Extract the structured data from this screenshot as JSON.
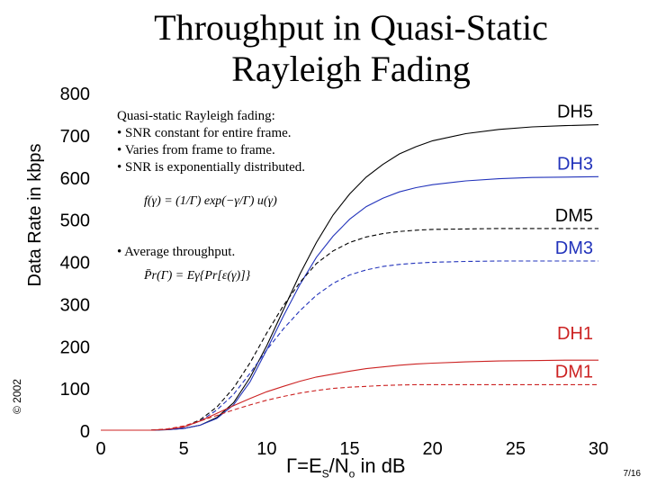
{
  "slide": {
    "title_line1": "Throughput in Quasi-Static",
    "title_line2": "Rayleigh Fading",
    "copyright": "© 2002",
    "page": "7/16"
  },
  "annotation": {
    "heading": "Quasi-static Rayleigh fading:",
    "bullets": [
      "• SNR constant for entire frame.",
      "• Varies from frame to frame.",
      "• SNR is exponentially distributed."
    ],
    "pdf_formula": "f(γ) = (1/Γ) exp(−γ/Γ) u(γ)",
    "bullet2": "• Average throughput.",
    "avg_formula": "P̄r(Γ) = Eγ{Pr[ε(γ)]}"
  },
  "colors": {
    "black": "#000000",
    "blue": "#2233bb",
    "red": "#cc2222"
  },
  "chart_data": {
    "type": "line",
    "title": "Throughput in Quasi-Static Rayleigh Fading",
    "xlabel": "Γ=ES/No in dB",
    "ylabel": "Data Rate in kbps",
    "xlim": [
      0,
      30
    ],
    "ylim": [
      0,
      800
    ],
    "xticks": [
      0,
      5,
      10,
      15,
      20,
      25,
      30
    ],
    "yticks": [
      0,
      100,
      200,
      300,
      400,
      500,
      600,
      700,
      800
    ],
    "grid": false,
    "series": [
      {
        "name": "DH5",
        "color": "#000000",
        "dash": false,
        "x": [
          0,
          3,
          4,
          5,
          6,
          7,
          8,
          9,
          10,
          11,
          12,
          13,
          14,
          15,
          16,
          17,
          18,
          19,
          20,
          22,
          24,
          26,
          28,
          30
        ],
        "y": [
          0,
          0,
          1,
          4,
          12,
          30,
          65,
          125,
          200,
          285,
          370,
          445,
          510,
          560,
          600,
          630,
          655,
          672,
          686,
          703,
          713,
          719,
          722,
          724
        ]
      },
      {
        "name": "DH3",
        "color": "#2233bb",
        "dash": false,
        "x": [
          0,
          3,
          4,
          5,
          6,
          7,
          8,
          9,
          10,
          11,
          12,
          13,
          14,
          15,
          16,
          17,
          18,
          19,
          20,
          22,
          24,
          26,
          28,
          30
        ],
        "y": [
          0,
          0,
          1,
          4,
          12,
          28,
          60,
          115,
          190,
          270,
          345,
          410,
          460,
          500,
          530,
          550,
          565,
          575,
          582,
          591,
          596,
          599,
          600,
          601
        ]
      },
      {
        "name": "DM5",
        "color": "#000000",
        "dash": true,
        "x": [
          0,
          3,
          4,
          5,
          6,
          7,
          8,
          9,
          10,
          11,
          12,
          13,
          14,
          15,
          16,
          17,
          18,
          19,
          20,
          22,
          24,
          26,
          28,
          30
        ],
        "y": [
          0,
          0,
          2,
          8,
          25,
          55,
          100,
          160,
          230,
          295,
          350,
          395,
          425,
          445,
          458,
          466,
          471,
          474,
          476,
          477,
          478,
          478,
          478,
          478
        ]
      },
      {
        "name": "DM3",
        "color": "#2233bb",
        "dash": true,
        "x": [
          0,
          3,
          4,
          5,
          6,
          7,
          8,
          9,
          10,
          11,
          12,
          13,
          14,
          15,
          16,
          17,
          18,
          19,
          20,
          22,
          24,
          26,
          28,
          30
        ],
        "y": [
          0,
          0,
          2,
          7,
          22,
          48,
          85,
          135,
          190,
          240,
          283,
          320,
          348,
          368,
          380,
          388,
          393,
          396,
          398,
          400,
          401,
          401,
          401,
          401
        ]
      },
      {
        "name": "DH1",
        "color": "#cc2222",
        "dash": false,
        "x": [
          0,
          3,
          4,
          5,
          6,
          7,
          8,
          9,
          10,
          11,
          12,
          13,
          14,
          15,
          16,
          17,
          18,
          19,
          20,
          22,
          24,
          26,
          28,
          30
        ],
        "y": [
          0,
          0,
          2,
          8,
          22,
          40,
          58,
          75,
          91,
          104,
          116,
          126,
          133,
          140,
          146,
          150,
          154,
          157,
          159,
          162,
          164,
          165,
          166,
          166
        ]
      },
      {
        "name": "DM1",
        "color": "#cc2222",
        "dash": true,
        "x": [
          0,
          3,
          4,
          5,
          6,
          7,
          8,
          9,
          10,
          11,
          12,
          13,
          14,
          15,
          16,
          17,
          18,
          19,
          20,
          22,
          24,
          26,
          28,
          30
        ],
        "y": [
          0,
          0,
          3,
          10,
          22,
          35,
          48,
          60,
          71,
          80,
          88,
          94,
          99,
          102,
          104,
          106,
          107,
          108,
          108,
          108,
          108,
          108,
          108,
          108
        ]
      }
    ],
    "legend_labels": [
      {
        "name": "DH5",
        "color": "#000000"
      },
      {
        "name": "DH3",
        "color": "#2233bb"
      },
      {
        "name": "DM5",
        "color": "#000000"
      },
      {
        "name": "DM3",
        "color": "#2233bb"
      },
      {
        "name": "DH1",
        "color": "#cc2222"
      },
      {
        "name": "DM1",
        "color": "#cc2222"
      }
    ]
  }
}
